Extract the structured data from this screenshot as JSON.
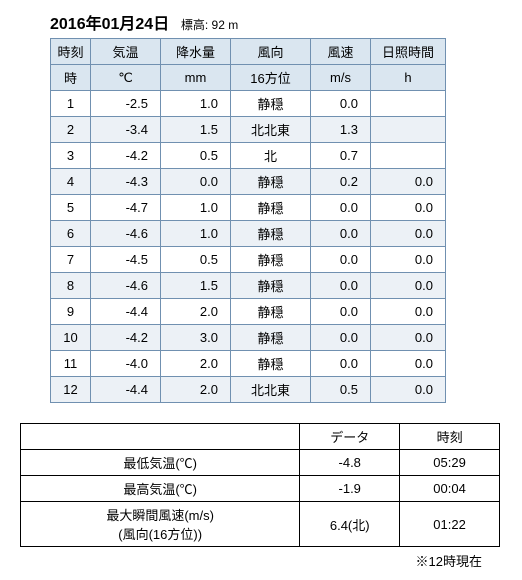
{
  "header": {
    "date": "2016年01月24日",
    "elevation_label": "標高:",
    "elevation_value": "92 m"
  },
  "weather": {
    "headers1": [
      "時刻",
      "気温",
      "降水量",
      "風向",
      "風速",
      "日照時間"
    ],
    "headers2": [
      "時",
      "℃",
      "mm",
      "16方位",
      "m/s",
      "h"
    ],
    "rows": [
      {
        "h": "1",
        "t": "-2.5",
        "p": "1.0",
        "d": "静穏",
        "s": "0.0",
        "sun": ""
      },
      {
        "h": "2",
        "t": "-3.4",
        "p": "1.5",
        "d": "北北東",
        "s": "1.3",
        "sun": ""
      },
      {
        "h": "3",
        "t": "-4.2",
        "p": "0.5",
        "d": "北",
        "s": "0.7",
        "sun": ""
      },
      {
        "h": "4",
        "t": "-4.3",
        "p": "0.0",
        "d": "静穏",
        "s": "0.2",
        "sun": "0.0"
      },
      {
        "h": "5",
        "t": "-4.7",
        "p": "1.0",
        "d": "静穏",
        "s": "0.0",
        "sun": "0.0"
      },
      {
        "h": "6",
        "t": "-4.6",
        "p": "1.0",
        "d": "静穏",
        "s": "0.0",
        "sun": "0.0"
      },
      {
        "h": "7",
        "t": "-4.5",
        "p": "0.5",
        "d": "静穏",
        "s": "0.0",
        "sun": "0.0"
      },
      {
        "h": "8",
        "t": "-4.6",
        "p": "1.5",
        "d": "静穏",
        "s": "0.0",
        "sun": "0.0"
      },
      {
        "h": "9",
        "t": "-4.4",
        "p": "2.0",
        "d": "静穏",
        "s": "0.0",
        "sun": "0.0"
      },
      {
        "h": "10",
        "t": "-4.2",
        "p": "3.0",
        "d": "静穏",
        "s": "0.0",
        "sun": "0.0"
      },
      {
        "h": "11",
        "t": "-4.0",
        "p": "2.0",
        "d": "静穏",
        "s": "0.0",
        "sun": "0.0"
      },
      {
        "h": "12",
        "t": "-4.4",
        "p": "2.0",
        "d": "北北東",
        "s": "0.5",
        "sun": "0.0"
      }
    ]
  },
  "summary": {
    "header_data": "データ",
    "header_time": "時刻",
    "rows": [
      {
        "label": "最低気温(℃)",
        "data": "-4.8",
        "time": "05:29"
      },
      {
        "label": "最高気温(℃)",
        "data": "-1.9",
        "time": "00:04"
      },
      {
        "label": "最大瞬間風速(m/s)\n(風向(16方位))",
        "data": "6.4(北)",
        "time": "01:22"
      }
    ]
  },
  "footnote": "※12時現在"
}
